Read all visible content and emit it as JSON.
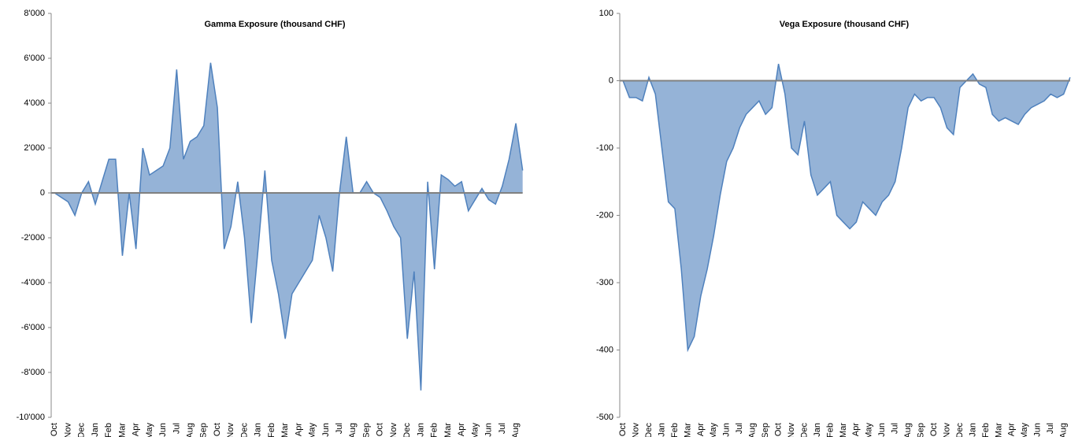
{
  "chart_data": [
    {
      "type": "area",
      "title": "Gamma Exposure  (thousand CHF)",
      "categories": [
        "Oct",
        null,
        "Nov",
        null,
        "Dec",
        null,
        "Jan",
        null,
        "Feb",
        null,
        "Mar",
        null,
        "Apr",
        null,
        "May",
        null,
        "Jun",
        null,
        "Jul",
        null,
        "Aug",
        null,
        "Sep",
        null,
        "Oct",
        null,
        "Nov",
        null,
        "Dec",
        null,
        "Jan",
        null,
        "Feb",
        null,
        "Mar",
        null,
        "Apr",
        null,
        "May",
        null,
        "Jun",
        null,
        "Jul",
        null,
        "Aug",
        null,
        "Sep",
        null,
        "Oct",
        null,
        "Nov",
        null,
        "Dec",
        null,
        "Jan",
        null,
        "Feb",
        null,
        "Mar",
        null,
        "Apr",
        null,
        "May",
        null,
        "Jun",
        null,
        "Jul",
        null,
        "Aug",
        null
      ],
      "values": [
        0,
        -200,
        -400,
        -1000,
        0,
        500,
        -500,
        500,
        1500,
        1500,
        -2800,
        0,
        -2500,
        2000,
        800,
        1000,
        1200,
        2000,
        5500,
        1500,
        2300,
        2500,
        3000,
        5800,
        3800,
        -2500,
        -1500,
        500,
        -2000,
        -5800,
        -2500,
        1000,
        -3000,
        -4500,
        -6500,
        -4500,
        -4000,
        -3500,
        -3000,
        -1000,
        -2000,
        -3500,
        0,
        2500,
        0,
        0,
        500,
        0,
        -200,
        -800,
        -1500,
        -2000,
        -6500,
        -3500,
        -8800,
        500,
        -3400,
        800,
        600,
        300,
        500,
        -800,
        -300,
        200,
        -300,
        -500,
        300,
        1500,
        3100,
        1000
      ],
      "color": "#4f81bd",
      "fill": "#95b3d7",
      "ylim": [
        -10000,
        8000
      ],
      "yticks": [
        {
          "value": -10000,
          "label": "-10'000"
        },
        {
          "value": -8000,
          "label": "-8'000"
        },
        {
          "value": -6000,
          "label": "-6'000"
        },
        {
          "value": -4000,
          "label": "-4'000"
        },
        {
          "value": -2000,
          "label": "-2'000"
        },
        0,
        {
          "value": 2000,
          "label": "2'000"
        },
        {
          "value": 4000,
          "label": "4'000"
        },
        {
          "value": 6000,
          "label": "6'000"
        },
        {
          "value": 8000,
          "label": "8'000"
        }
      ]
    },
    {
      "type": "area",
      "title": "Vega Exposure (thousand CHF)",
      "categories": [
        "Oct",
        null,
        "Nov",
        null,
        "Dec",
        null,
        "Jan",
        null,
        "Feb",
        null,
        "Mar",
        null,
        "Apr",
        null,
        "May",
        null,
        "Jun",
        null,
        "Jul",
        null,
        "Aug",
        null,
        "Sep",
        null,
        "Oct",
        null,
        "Nov",
        null,
        "Dec",
        null,
        "Jan",
        null,
        "Feb",
        null,
        "Mar",
        null,
        "Apr",
        null,
        "May",
        null,
        "Jun",
        null,
        "Jul",
        null,
        "Aug",
        null,
        "Sep",
        null,
        "Oct",
        null,
        "Nov",
        null,
        "Dec",
        null,
        "Jan",
        null,
        "Feb",
        null,
        "Mar",
        null,
        "Apr",
        null,
        "May",
        null,
        "Jun",
        null,
        "Jul",
        null,
        "Aug",
        null
      ],
      "values": [
        0,
        -25,
        -25,
        -30,
        5,
        -20,
        -100,
        -180,
        -190,
        -280,
        -400,
        -380,
        -320,
        -280,
        -230,
        -170,
        -120,
        -100,
        -70,
        -50,
        -40,
        -30,
        -50,
        -40,
        25,
        -20,
        -100,
        -110,
        -60,
        -140,
        -170,
        -160,
        -150,
        -200,
        -210,
        -220,
        -210,
        -180,
        -190,
        -200,
        -180,
        -170,
        -150,
        -100,
        -40,
        -20,
        -30,
        -25,
        -25,
        -40,
        -70,
        -80,
        -10,
        0,
        10,
        -5,
        -10,
        -50,
        -60,
        -55,
        -60,
        -65,
        -50,
        -40,
        -35,
        -30,
        -20,
        -25,
        -20,
        5
      ],
      "color": "#4f81bd",
      "fill": "#95b3d7",
      "ylim": [
        -500,
        100
      ],
      "yticks": [
        -500,
        -400,
        -300,
        -200,
        -100,
        0,
        100
      ]
    }
  ]
}
